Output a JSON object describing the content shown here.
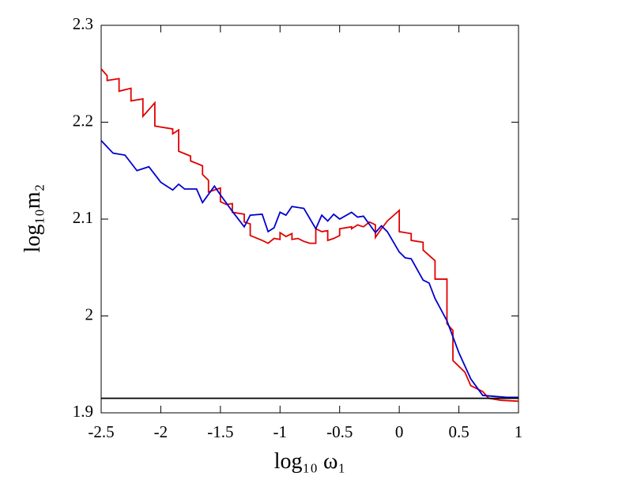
{
  "chart_data": {
    "type": "line",
    "x_label": "log₁₀ ω₁",
    "y_label": "log₁₀m₂",
    "xlim": [
      -2.5,
      1
    ],
    "ylim": [
      1.9,
      2.3
    ],
    "xticks": [
      -2.5,
      -2,
      -1.5,
      -1,
      -0.5,
      0,
      0.5,
      1
    ],
    "yticks": [
      1.9,
      2,
      2.1,
      2.2,
      2.3
    ],
    "series": [
      {
        "color": "#e00000",
        "x": [
          -2.5,
          -2.45,
          -2.45,
          -2.35,
          -2.35,
          -2.25,
          -2.25,
          -2.15,
          -2.15,
          -2.05,
          -2.05,
          -1.9,
          -1.9,
          -1.85,
          -1.85,
          -1.75,
          -1.75,
          -1.65,
          -1.65,
          -1.6,
          -1.6,
          -1.5,
          -1.5,
          -1.45,
          -1.4,
          -1.4,
          -1.3,
          -1.3,
          -1.25,
          -1.25,
          -1.15,
          -1.1,
          -1.05,
          -1.0,
          -1.0,
          -0.95,
          -0.9,
          -0.9,
          -0.85,
          -0.8,
          -0.75,
          -0.7,
          -0.7,
          -0.65,
          -0.6,
          -0.6,
          -0.55,
          -0.5,
          -0.5,
          -0.4,
          -0.4,
          -0.35,
          -0.3,
          -0.25,
          -0.2,
          -0.2,
          -0.15,
          -0.1,
          0.0,
          0.0,
          0.1,
          0.1,
          0.2,
          0.2,
          0.3,
          0.3,
          0.4,
          0.4,
          0.45,
          0.45,
          0.55,
          0.6,
          0.7,
          0.75,
          0.85,
          1.0
        ],
        "values": [
          2.255,
          2.248,
          2.243,
          2.245,
          2.232,
          2.235,
          2.222,
          2.224,
          2.206,
          2.22,
          2.196,
          2.193,
          2.188,
          2.192,
          2.17,
          2.165,
          2.16,
          2.155,
          2.146,
          2.14,
          2.128,
          2.132,
          2.118,
          2.115,
          2.116,
          2.107,
          2.105,
          2.097,
          2.095,
          2.083,
          2.078,
          2.075,
          2.08,
          2.079,
          2.086,
          2.082,
          2.085,
          2.079,
          2.08,
          2.077,
          2.075,
          2.075,
          2.09,
          2.087,
          2.088,
          2.078,
          2.08,
          2.083,
          2.09,
          2.092,
          2.09,
          2.094,
          2.092,
          2.097,
          2.094,
          2.081,
          2.09,
          2.098,
          2.109,
          2.087,
          2.085,
          2.078,
          2.076,
          2.068,
          2.057,
          2.038,
          2.038,
          1.992,
          1.985,
          1.954,
          1.942,
          1.928,
          1.922,
          1.915,
          1.913,
          1.912
        ]
      },
      {
        "color": "#0000d0",
        "x": [
          -2.5,
          -2.4,
          -2.3,
          -2.2,
          -2.1,
          -2.0,
          -1.9,
          -1.85,
          -1.8,
          -1.7,
          -1.65,
          -1.55,
          -1.5,
          -1.4,
          -1.3,
          -1.25,
          -1.15,
          -1.1,
          -1.05,
          -1.0,
          -0.95,
          -0.9,
          -0.8,
          -0.7,
          -0.65,
          -0.6,
          -0.55,
          -0.5,
          -0.4,
          -0.35,
          -0.3,
          -0.2,
          -0.15,
          -0.1,
          0.0,
          0.05,
          0.1,
          0.2,
          0.25,
          0.3,
          0.4,
          0.5,
          0.6,
          0.7,
          0.8,
          0.9,
          1.0
        ],
        "values": [
          2.181,
          2.168,
          2.166,
          2.15,
          2.154,
          2.138,
          2.13,
          2.136,
          2.131,
          2.131,
          2.117,
          2.134,
          2.125,
          2.108,
          2.092,
          2.104,
          2.105,
          2.087,
          2.091,
          2.107,
          2.104,
          2.113,
          2.111,
          2.09,
          2.104,
          2.098,
          2.105,
          2.1,
          2.107,
          2.102,
          2.103,
          2.086,
          2.093,
          2.087,
          2.066,
          2.06,
          2.059,
          2.037,
          2.034,
          2.018,
          1.995,
          1.962,
          1.935,
          1.918,
          1.917,
          1.916,
          1.916
        ]
      },
      {
        "color": "#000000",
        "x": [
          -2.5,
          1
        ],
        "values": [
          1.915,
          1.915
        ]
      }
    ]
  }
}
